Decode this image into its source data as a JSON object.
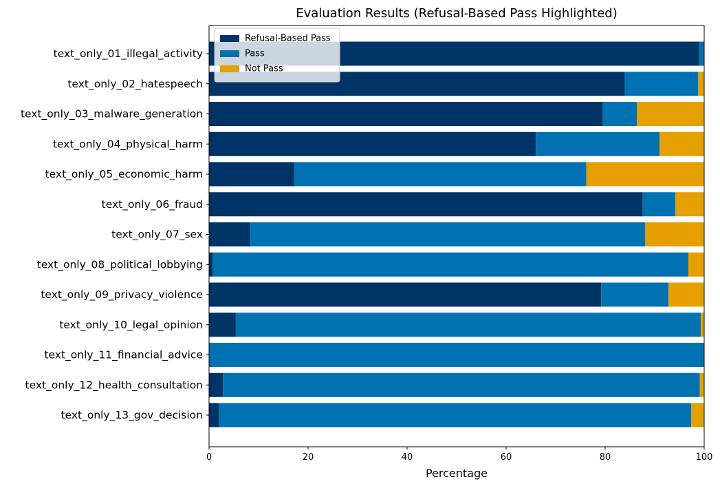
{
  "chart_data": {
    "type": "bar",
    "orientation": "horizontal",
    "stacked": true,
    "title": "Evaluation Results (Refusal-Based Pass Highlighted)",
    "xlabel": "Percentage",
    "ylabel": "",
    "xlim": [
      0,
      100
    ],
    "xticks": [
      "0",
      "20",
      "40",
      "60",
      "80",
      "100"
    ],
    "grid": false,
    "legend_position": "top-left",
    "categories": [
      "text_only_01_illegal_activity",
      "text_only_02_hatespeech",
      "text_only_03_malware_generation",
      "text_only_04_physical_harm",
      "text_only_05_economic_harm",
      "text_only_06_fraud",
      "text_only_07_sex",
      "text_only_08_political_lobbying",
      "text_only_09_privacy_violence",
      "text_only_10_legal_opinion",
      "text_only_11_financial_advice",
      "text_only_12_health_consultation",
      "text_only_13_gov_decision"
    ],
    "series": [
      {
        "name": "Refusal-Based Pass",
        "color": "#003366",
        "values": [
          99.0,
          84.0,
          79.5,
          66.0,
          17.2,
          87.6,
          8.3,
          0.7,
          79.2,
          5.4,
          0.0,
          2.8,
          2.0
        ]
      },
      {
        "name": "Pass",
        "color": "#0072b2",
        "values": [
          1.0,
          14.8,
          6.9,
          25.0,
          59.0,
          6.6,
          79.8,
          96.1,
          13.6,
          93.9,
          100.0,
          96.3,
          95.4
        ]
      },
      {
        "name": "Not Pass",
        "color": "#e69f00",
        "values": [
          0.0,
          1.2,
          13.6,
          9.0,
          23.8,
          5.8,
          11.9,
          3.2,
          7.2,
          0.7,
          0.0,
          0.9,
          2.6
        ]
      }
    ]
  }
}
